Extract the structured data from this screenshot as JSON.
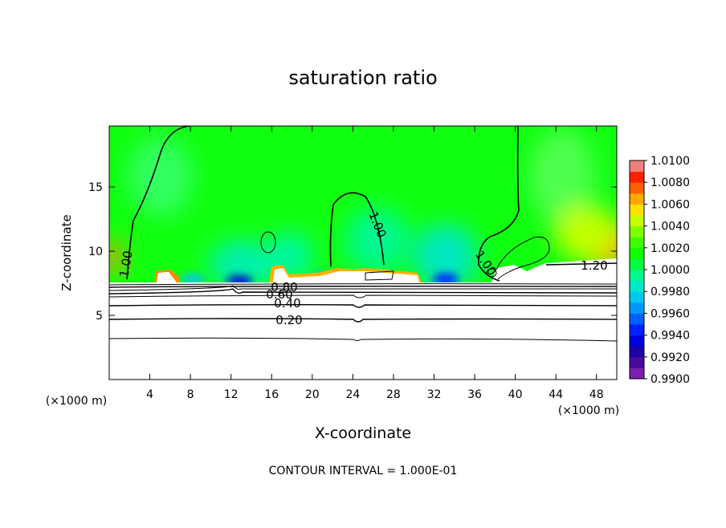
{
  "chart_data": {
    "type": "contour",
    "title": "saturation ratio",
    "x_label": "X-coordinate",
    "y_label": "Z-coordinate",
    "x_unit": "(×1000 m)",
    "xlim": [
      0,
      50
    ],
    "xticks": [
      4,
      8,
      12,
      16,
      20,
      24,
      28,
      32,
      36,
      40,
      44,
      48
    ],
    "ylim": [
      0,
      19.75
    ],
    "yticks": [
      5,
      10,
      15
    ],
    "colorbar": {
      "lim": [
        0.99,
        1.01
      ],
      "ticks": [
        {
          "value": 0.99,
          "label": "0.9900"
        },
        {
          "value": 0.992,
          "label": "0.9920"
        },
        {
          "value": 0.994,
          "label": "0.9940"
        },
        {
          "value": 0.996,
          "label": "0.9960"
        },
        {
          "value": 0.998,
          "label": "0.9980"
        },
        {
          "value": 1.0,
          "label": "1.0000"
        },
        {
          "value": 1.002,
          "label": "1.0020"
        },
        {
          "value": 1.004,
          "label": "1.0040"
        },
        {
          "value": 1.006,
          "label": "1.0060"
        },
        {
          "value": 1.008,
          "label": "1.0080"
        },
        {
          "value": 1.01,
          "label": "1.0100"
        }
      ],
      "colors": [
        "#7a1fb0",
        "#4b0a9e",
        "#1c00a8",
        "#0000d8",
        "#0020ff",
        "#0060ff",
        "#0098ff",
        "#00c8f0",
        "#00e8c8",
        "#00f890",
        "#00ff40",
        "#10ff00",
        "#40ff00",
        "#80ff00",
        "#c8ff00",
        "#ffe000",
        "#ffa800",
        "#ff6000",
        "#ff2000",
        "#f08080"
      ]
    },
    "contours": [
      {
        "value": 0.2,
        "label": "0.20"
      },
      {
        "value": 0.4,
        "label": "0.40"
      },
      {
        "value": 0.6,
        "label": "0.60"
      },
      {
        "value": 0.8,
        "label": "0.80"
      },
      {
        "value": 1.0,
        "label": "1.00"
      },
      {
        "value": 1.2,
        "label": "1.20"
      }
    ],
    "note": "CONTOUR INTERVAL = 1.000E-01"
  }
}
